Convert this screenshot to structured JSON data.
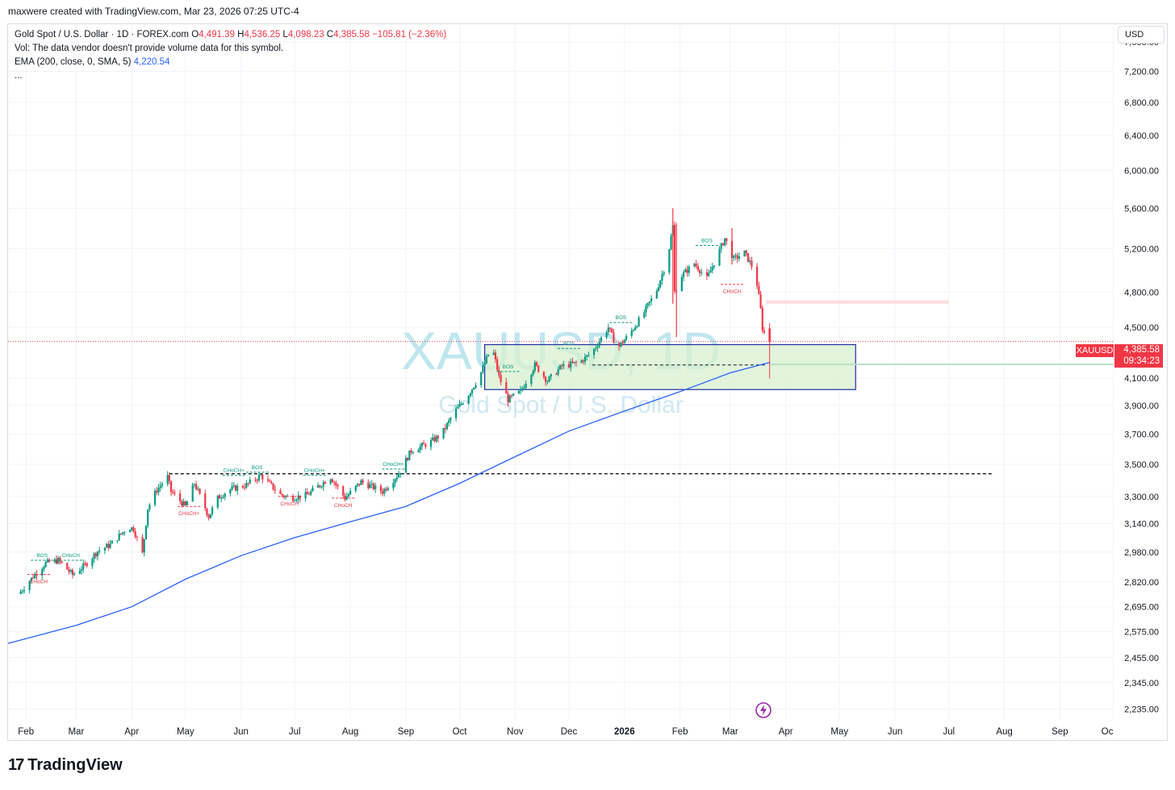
{
  "header": {
    "credit": "maxwere created with TradingView.com, Mar 23, 2026 07:25 UTC-4"
  },
  "legend": {
    "symbol_line": "Gold Spot / U.S. Dollar · 1D · FOREX.com",
    "o_label": "O",
    "o_value": "4,491.39",
    "h_label": "H",
    "h_value": "4,536.25",
    "l_label": "L",
    "l_value": "4,098.23",
    "c_label": "C",
    "c_value": "4,385.58",
    "change": "−105.81 (−2.36%)",
    "vol_line": "Vol: The data vendor doesn't provide volume data for this symbol.",
    "ema_label": "EMA (200, close, 0, SMA, 5)",
    "ema_value": "4,220.54",
    "more": "..."
  },
  "currency_button": "USD",
  "last_price": {
    "symbol": "XAUUSD",
    "price": "4,385.58",
    "countdown": "09:34:23"
  },
  "watermark": {
    "line1": "XAUUSD, 1D",
    "line2": "Gold Spot / U.S. Dollar"
  },
  "logo": {
    "mark": "17",
    "text": "TradingView"
  },
  "colors": {
    "up": "#089981",
    "down": "#f23645",
    "ema": "#2962ff",
    "zone_fill": "#d8f0cf",
    "zone_border": "#1e2fa0",
    "grid": "#f0f3fa"
  },
  "icons": {
    "events": "lightning-icon"
  },
  "chart_data": {
    "type": "candlestick",
    "title": "Gold Spot / U.S. Dollar · 1D · FOREX.com",
    "y_scale": "log",
    "ylim": [
      2190,
      7850
    ],
    "y_ticks": [
      "7,600.00",
      "7,200.00",
      "6,800.00",
      "6,400.00",
      "6,000.00",
      "5,600.00",
      "5,200.00",
      "4,800.00",
      "4,500.00",
      "4,100.00",
      "3,900.00",
      "3,700.00",
      "3,500.00",
      "3,300.00",
      "3,140.00",
      "2,980.00",
      "2,820.00",
      "2,695.00",
      "2,575.00",
      "2,455.00",
      "2,345.00",
      "2,235.00"
    ],
    "x_ticks": [
      "Feb",
      "Mar",
      "Apr",
      "May",
      "Jun",
      "Jul",
      "Aug",
      "Sep",
      "Oct",
      "Nov",
      "Dec",
      "2026",
      "Feb",
      "Mar",
      "Apr",
      "May",
      "Jun",
      "Jul",
      "Aug",
      "Sep",
      "Oc"
    ],
    "price_path": [
      [
        "2025-01-29",
        2760
      ],
      [
        "2025-02-07",
        2860
      ],
      [
        "2025-02-13",
        2920
      ],
      [
        "2025-02-20",
        2935
      ],
      [
        "2025-02-28",
        2858
      ],
      [
        "2025-03-07",
        2910
      ],
      [
        "2025-03-14",
        2985
      ],
      [
        "2025-03-21",
        3020
      ],
      [
        "2025-03-31",
        3120
      ],
      [
        "2025-04-03",
        3110
      ],
      [
        "2025-04-08",
        2970
      ],
      [
        "2025-04-11",
        3230
      ],
      [
        "2025-04-16",
        3340
      ],
      [
        "2025-04-22",
        3420
      ],
      [
        "2025-04-24",
        3330
      ],
      [
        "2025-05-02",
        3240
      ],
      [
        "2025-05-07",
        3380
      ],
      [
        "2025-05-15",
        3180
      ],
      [
        "2025-05-20",
        3290
      ],
      [
        "2025-05-26",
        3340
      ],
      [
        "2025-06-05",
        3370
      ],
      [
        "2025-06-13",
        3430
      ],
      [
        "2025-06-24",
        3310
      ],
      [
        "2025-06-30",
        3290
      ],
      [
        "2025-07-09",
        3310
      ],
      [
        "2025-07-22",
        3420
      ],
      [
        "2025-07-30",
        3290
      ],
      [
        "2025-08-08",
        3390
      ],
      [
        "2025-08-20",
        3330
      ],
      [
        "2025-08-29",
        3440
      ],
      [
        "2025-09-05",
        3590
      ],
      [
        "2025-09-15",
        3640
      ],
      [
        "2025-09-22",
        3700
      ],
      [
        "2025-09-29",
        3850
      ],
      [
        "2025-10-06",
        3960
      ],
      [
        "2025-10-13",
        4110
      ],
      [
        "2025-10-20",
        4350
      ],
      [
        "2025-10-24",
        4110
      ],
      [
        "2025-10-29",
        3940
      ],
      [
        "2025-11-05",
        4000
      ],
      [
        "2025-11-13",
        4200
      ],
      [
        "2025-11-20",
        4080
      ],
      [
        "2025-11-28",
        4190
      ],
      [
        "2025-12-08",
        4220
      ],
      [
        "2025-12-15",
        4300
      ],
      [
        "2025-12-24",
        4500
      ],
      [
        "2025-12-29",
        4330
      ],
      [
        "2026-01-05",
        4450
      ],
      [
        "2026-01-12",
        4600
      ],
      [
        "2026-01-20",
        4820
      ],
      [
        "2026-01-26",
        5100
      ],
      [
        "2026-01-29",
        5420
      ],
      [
        "2026-01-30",
        4800
      ],
      [
        "2026-02-03",
        4950
      ],
      [
        "2026-02-10",
        5060
      ],
      [
        "2026-02-17",
        4920
      ],
      [
        "2026-02-24",
        5180
      ],
      [
        "2026-02-27",
        5300
      ],
      [
        "2026-03-04",
        5100
      ],
      [
        "2026-03-10",
        5160
      ],
      [
        "2026-03-16",
        4980
      ],
      [
        "2026-03-19",
        4650
      ],
      [
        "2026-03-20",
        4491
      ],
      [
        "2026-03-23",
        4385.58
      ]
    ],
    "last_candle": {
      "date": "2026-03-23",
      "open": 4491.39,
      "high": 4536.25,
      "low": 4098.23,
      "close": 4385.58
    },
    "series": [
      {
        "name": "EMA (200, close, 0, SMA, 5)",
        "last": 4220.54,
        "path": [
          [
            "2025-01-22",
            2520
          ],
          [
            "2025-03-01",
            2605
          ],
          [
            "2025-04-01",
            2695
          ],
          [
            "2025-05-01",
            2835
          ],
          [
            "2025-06-01",
            2960
          ],
          [
            "2025-07-01",
            3060
          ],
          [
            "2025-08-01",
            3150
          ],
          [
            "2025-09-01",
            3240
          ],
          [
            "2025-10-01",
            3380
          ],
          [
            "2025-11-01",
            3550
          ],
          [
            "2025-12-01",
            3720
          ],
          [
            "2026-01-01",
            3860
          ],
          [
            "2026-02-01",
            4000
          ],
          [
            "2026-03-01",
            4140
          ],
          [
            "2026-03-23",
            4220
          ]
        ]
      }
    ],
    "annotations": [
      {
        "text": "BOS",
        "date": "2025-02-10",
        "price": 2935,
        "type": "bos"
      },
      {
        "text": "CHoCH",
        "date": "2025-02-26",
        "price": 2935,
        "type": "choch_up"
      },
      {
        "text": "CHoCH",
        "date": "2025-02-08",
        "price": 2860,
        "type": "choch_down"
      },
      {
        "text": "CHoCH+",
        "date": "2025-05-03",
        "price": 3240,
        "type": "choch_down"
      },
      {
        "text": "CHoCH+",
        "date": "2025-05-28",
        "price": 3430,
        "type": "choch_up"
      },
      {
        "text": "BOS",
        "date": "2025-06-10",
        "price": 3450,
        "type": "bos"
      },
      {
        "text": "CHoCH",
        "date": "2025-06-28",
        "price": 3300,
        "type": "choch_down"
      },
      {
        "text": "CHoCH+",
        "date": "2025-07-12",
        "price": 3430,
        "type": "choch_up"
      },
      {
        "text": "CHoCH",
        "date": "2025-07-28",
        "price": 3290,
        "type": "choch_down"
      },
      {
        "text": "CHoCH+",
        "date": "2025-08-25",
        "price": 3470,
        "type": "choch_up"
      },
      {
        "text": "BOS",
        "date": "2025-10-28",
        "price": 4150,
        "type": "bos"
      },
      {
        "text": "BOS",
        "date": "2025-12-01",
        "price": 4330,
        "type": "bos"
      },
      {
        "text": "BOS",
        "date": "2025-12-30",
        "price": 4540,
        "type": "bos"
      },
      {
        "text": "BOS",
        "date": "2026-02-16",
        "price": 5230,
        "type": "bos"
      },
      {
        "text": "CHoCH",
        "date": "2026-03-02",
        "price": 4870,
        "type": "choch_down"
      }
    ],
    "levels": [
      {
        "kind": "dashed",
        "price": 3440,
        "from": "2025-04-22",
        "to": "2026-07-25"
      },
      {
        "kind": "dashed",
        "price": 4200,
        "from": "2025-12-14",
        "to": "2026-03-21"
      }
    ],
    "zones": [
      {
        "kind": "demand",
        "top": 4360,
        "bottom": 4015,
        "from": "2025-10-15",
        "to": "2026-05-10"
      },
      {
        "kind": "supply",
        "top": 4730,
        "bottom": 4700,
        "from": "2026-03-21",
        "to": "2026-07-01"
      }
    ]
  }
}
